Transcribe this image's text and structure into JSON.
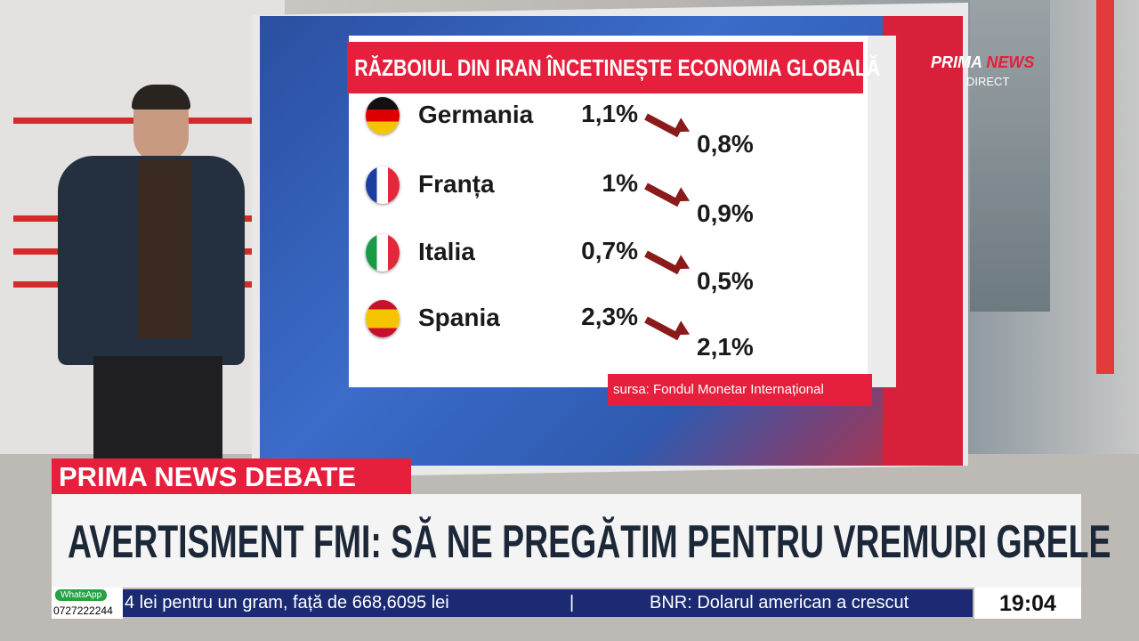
{
  "graphic": {
    "title": "RĂZBOIUL DIN IRAN ÎNCETINEȘTE ECONOMIA GLOBALĂ",
    "rows": [
      {
        "country": "Germania",
        "before": "1,1%",
        "after": "0,8%"
      },
      {
        "country": "Franța",
        "before": "1%",
        "after": "0,9%"
      },
      {
        "country": "Italia",
        "before": "0,7%",
        "after": "0,5%"
      },
      {
        "country": "Spania",
        "before": "2,3%",
        "after": "2,1%"
      }
    ],
    "source": "sursa: Fondul Monetar Internațional"
  },
  "logo": {
    "brand": "PRIMA",
    "brand_accent": "NEWS",
    "status": "DIRECT"
  },
  "lower_third": {
    "show": "PRIMA NEWS DEBATE",
    "headline": "AVERTISMENT FMI: SĂ NE PREGĂTIM PENTRU VREMURI GRELE"
  },
  "ticker": {
    "whatsapp": "WhatsApp",
    "phone": "0727222244",
    "items": [
      "4 lei pentru un gram, față de 668,6095 lei",
      "BNR: Dolarul american a crescut"
    ],
    "separator": "|",
    "clock": "19:04"
  }
}
